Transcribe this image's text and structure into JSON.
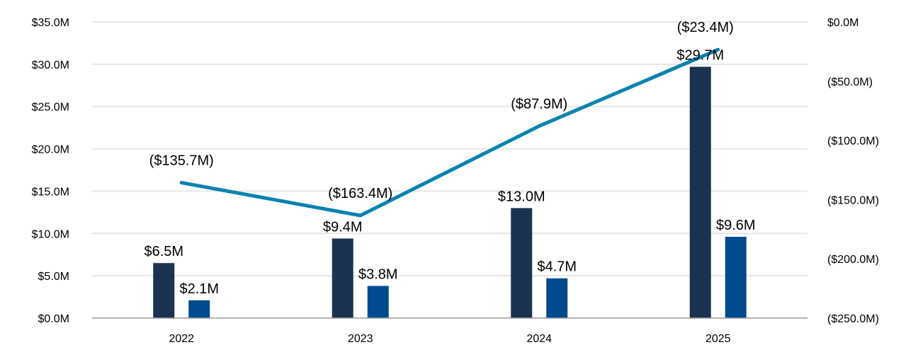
{
  "chart_data": {
    "type": "bar",
    "categories": [
      "2022",
      "2023",
      "2024",
      "2025"
    ],
    "series": [
      {
        "kind": "bar",
        "axis": "left",
        "color": "#1b3350",
        "values": [
          6.5,
          9.4,
          13.0,
          29.7
        ],
        "labels": [
          "$6.5M",
          "$9.4M",
          "$13.0M",
          "$29.7M"
        ]
      },
      {
        "kind": "bar",
        "axis": "left",
        "color": "#004b8d",
        "values": [
          2.1,
          3.8,
          4.7,
          9.6
        ],
        "labels": [
          "$2.1M",
          "$3.8M",
          "$4.7M",
          "$9.6M"
        ]
      },
      {
        "kind": "line",
        "axis": "right",
        "color": "#0a82b0",
        "values": [
          -135.7,
          -163.4,
          -87.9,
          -23.4
        ],
        "labels": [
          "($135.7M)",
          "($163.4M)",
          "($87.9M)",
          "($23.4M)"
        ]
      }
    ],
    "y_left": {
      "range": [
        0,
        35
      ],
      "ticks": [
        0,
        5,
        10,
        15,
        20,
        25,
        30,
        35
      ],
      "tick_labels": [
        "$0.0M",
        "$5.0M",
        "$10.0M",
        "$15.0M",
        "$20.0M",
        "$25.0M",
        "$30.0M",
        "$35.0M"
      ]
    },
    "y_right": {
      "range": [
        -250,
        0
      ],
      "ticks": [
        -250,
        -200,
        -150,
        -100,
        -50,
        0
      ],
      "tick_labels": [
        "($250.0M)",
        "($200.0M)",
        "($150.0M)",
        "($100.0M)",
        "($50.0M)",
        "$0.0M"
      ]
    },
    "grid": true,
    "legend": "none",
    "gridline_color": "#e6e6e6",
    "axis_color": "#9a9a9a"
  }
}
